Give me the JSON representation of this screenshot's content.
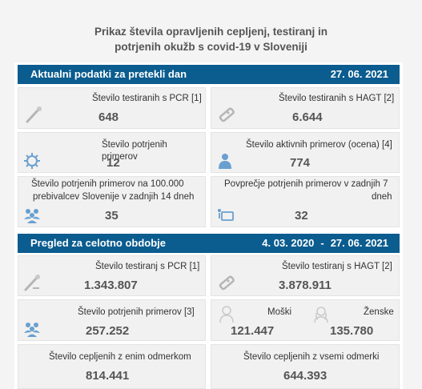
{
  "title": {
    "line1": "Prikaz števila opravljenih cepljenj, testiranj in",
    "line2": "potrjenih okužb s covid-19 v Sloveniji"
  },
  "daily": {
    "header": "Aktualni podatki za pretekli dan",
    "date": "27. 06. 2021",
    "pcr": {
      "label": "Število testiranih s PCR [1]",
      "value": "648"
    },
    "hagt": {
      "label": "Število testiranih s HAGT [2]",
      "value": "6.644"
    },
    "confirmed": {
      "label": "Število potrjenih primerov",
      "value": "12"
    },
    "active": {
      "label": "Število aktivnih primerov (ocena) [4]",
      "value": "774"
    },
    "per100k": {
      "label1": "Število potrjenih primerov na 100.000",
      "label2": "prebivalcev Slovenije v zadnjih 14 dneh",
      "value": "35"
    },
    "avg7": {
      "label1": "Povprečje potrjenih primerov v zadnjih 7",
      "label2": "dneh",
      "value": "32"
    }
  },
  "overall": {
    "header": "Pregled za celotno obdobje",
    "date_from": "4. 03. 2020",
    "separator": "-",
    "date_to": "27. 06. 2021",
    "pcr": {
      "label": "Število testiranj s PCR [1]",
      "value": "1.343.807"
    },
    "hagt": {
      "label": "Število testiranj s HAGT [2]",
      "value": "3.878.911"
    },
    "confirmed": {
      "label": "Število potrjenih primerov [3]",
      "value": "257.252"
    },
    "male": {
      "label": "Moški",
      "value": "121.447"
    },
    "female": {
      "label": "Ženske",
      "value": "135.780"
    },
    "vacc_one": {
      "label": "Število cepljenih z enim odmerkom",
      "value": "814.441"
    },
    "vacc_all": {
      "label": "Število cepljenih z vsemi odmerki",
      "value": "644.393"
    }
  },
  "colors": {
    "header_bg": "#0b5c8f",
    "card_bg": "#f1f1f1",
    "icon_blue": "#6a9fd0",
    "icon_gray": "#b5b5b5"
  },
  "icons": [
    "swab-icon",
    "rapid-test-icon",
    "virus-icon",
    "person-icon",
    "people-group-icon",
    "map-icon",
    "male-icon",
    "female-icon"
  ]
}
